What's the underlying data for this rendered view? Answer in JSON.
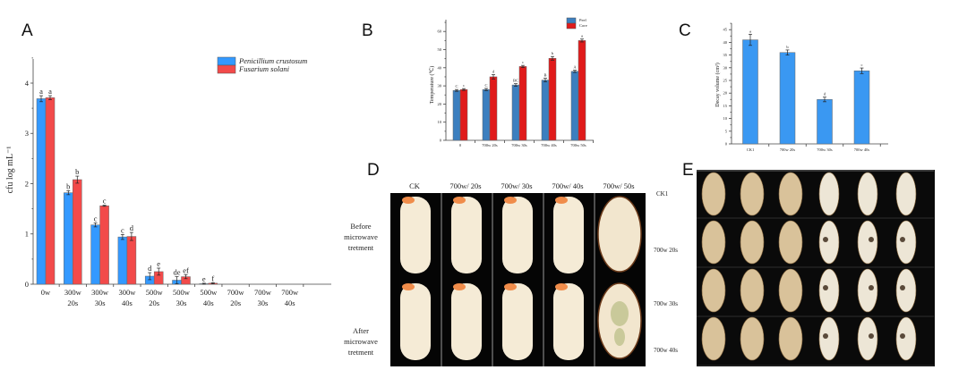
{
  "panels": {
    "a": "A",
    "b": "B",
    "c": "C",
    "d": "D",
    "e": "E"
  },
  "colors": {
    "blue": "#3399FF",
    "red": "#F24A4A",
    "peel": "#3C7FBF",
    "core": "#E01B1B",
    "bar_c": "#3A98F2"
  },
  "chart_data": [
    {
      "id": "A",
      "type": "bar",
      "title": "",
      "xlabel": "",
      "ylabel": "cfu log mL⁻¹",
      "ylim": [
        0,
        4.5
      ],
      "yticks": [
        "0",
        "1",
        "2",
        "3",
        "4"
      ],
      "categories": [
        [
          "0w",
          ""
        ],
        [
          "300w",
          "20s"
        ],
        [
          "300w",
          "30s"
        ],
        [
          "300w",
          "40s"
        ],
        [
          "500w",
          "20s"
        ],
        [
          "500w",
          "30s"
        ],
        [
          "500w",
          "40s"
        ],
        [
          "700w",
          "20s"
        ],
        [
          "700w",
          "30s"
        ],
        [
          "700w",
          "40s"
        ]
      ],
      "legend_position": "top-right",
      "series": [
        {
          "name": "Penicillium crustosum",
          "values": [
            3.69,
            1.82,
            1.18,
            0.94,
            0.16,
            0.08,
            0.01,
            0,
            0,
            0
          ],
          "errors": [
            0.06,
            0.04,
            0.04,
            0.05,
            0.07,
            0.07,
            0.01,
            0,
            0,
            0
          ],
          "letters": [
            "a",
            "b",
            "c",
            "c",
            "d",
            "de",
            "e",
            "",
            "",
            ""
          ]
        },
        {
          "name": "Fusarium solani",
          "values": [
            3.71,
            2.08,
            1.56,
            0.95,
            0.25,
            0.15,
            0.02,
            0,
            0,
            0
          ],
          "errors": [
            0.04,
            0.07,
            0.01,
            0.08,
            0.07,
            0.04,
            0.01,
            0,
            0,
            0
          ],
          "letters": [
            "a",
            "b",
            "c",
            "d",
            "e",
            "ef",
            "f",
            "",
            "",
            ""
          ]
        }
      ]
    },
    {
      "id": "B",
      "type": "bar",
      "ylabel": "Temperature (℃)",
      "ylim": [
        0,
        65
      ],
      "yticks": [
        "0",
        "10",
        "20",
        "30",
        "40",
        "50",
        "60"
      ],
      "categories": [
        "0",
        "700w 20s",
        "700w 30s",
        "700w 40s",
        "700w 50s"
      ],
      "legend_position": "top-right",
      "series": [
        {
          "name": "Peel",
          "values": [
            27.5,
            28,
            30.5,
            33.2,
            38
          ],
          "errors": [
            0.5,
            0.6,
            0.7,
            1.0,
            0.6
          ],
          "letters": [
            "C",
            "C",
            "BC",
            "B",
            "A"
          ]
        },
        {
          "name": "Core",
          "values": [
            28,
            35,
            40.7,
            45.2,
            55
          ],
          "errors": [
            0.5,
            1.2,
            0.6,
            1.0,
            0.8
          ],
          "letters": [
            "c",
            "d",
            "c",
            "b",
            "a"
          ]
        }
      ]
    },
    {
      "id": "C",
      "type": "bar",
      "ylabel": "Decay volume (cm³)",
      "ylim": [
        0,
        47
      ],
      "yticks": [
        "0",
        "5",
        "10",
        "15",
        "20",
        "25",
        "30",
        "35",
        "40",
        "45"
      ],
      "categories": [
        "CK1",
        "700w 20s",
        "700w 30s",
        "700w 40s"
      ],
      "series": [
        {
          "name": "Decay volume",
          "values": [
            41,
            36,
            17.5,
            28.8
          ],
          "errors": [
            2.2,
            1.0,
            0.9,
            1.1
          ],
          "letters": [
            "a",
            "b",
            "d",
            "c"
          ]
        }
      ]
    }
  ],
  "panel_d": {
    "columns": [
      "CK",
      "700w/ 20s",
      "700w/ 30s",
      "700w/ 40s",
      "700w/ 50s"
    ],
    "rows": [
      [
        "Before",
        "microwave",
        "tretment"
      ],
      [
        "After",
        "microwave",
        "tretment"
      ]
    ]
  },
  "panel_e": {
    "rows": [
      "CK1",
      "700w 20s",
      "700w 30s",
      "700w 40s"
    ]
  }
}
